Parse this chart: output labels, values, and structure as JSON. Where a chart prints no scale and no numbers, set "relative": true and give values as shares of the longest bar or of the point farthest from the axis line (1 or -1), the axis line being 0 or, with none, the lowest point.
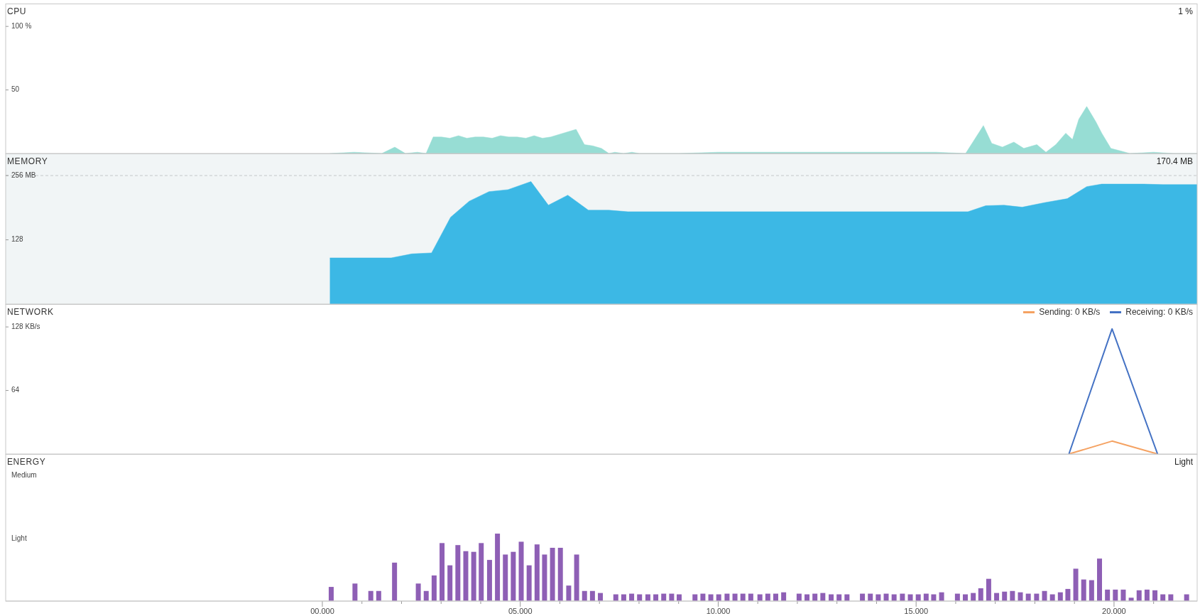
{
  "chart_data": [
    {
      "type": "area",
      "title": "CPU",
      "color": "#97ddd4",
      "xlim": [
        -8,
        22.1
      ],
      "ylim": [
        0,
        118
      ],
      "tick_labels": "y",
      "yticks": [
        {
          "value": 100,
          "label": "100 %"
        },
        50
      ],
      "annotations": [
        "1 %"
      ],
      "x": [
        0.19,
        0.8,
        1.5,
        1.83,
        2.1,
        2.4,
        2.62,
        2.8,
        3.01,
        3.22,
        3.44,
        3.65,
        3.86,
        4.07,
        4.29,
        4.5,
        4.71,
        4.92,
        5.14,
        5.35,
        5.56,
        5.77,
        5.98,
        6.41,
        6.62,
        6.83,
        7.05,
        7.24,
        7.39,
        7.61,
        7.82,
        8.01,
        9.0,
        10.0,
        11.7,
        12.9,
        14.3,
        15.5,
        16.25,
        16.7,
        16.91,
        17.18,
        17.47,
        17.72,
        18.05,
        18.28,
        18.53,
        18.78,
        18.95,
        19.11,
        19.31,
        19.54,
        19.69,
        19.92,
        20.17,
        20.4,
        21.0,
        21.5,
        22.1
      ],
      "values": [
        0,
        1,
        0,
        5,
        0,
        1,
        0,
        13,
        13,
        12,
        14,
        12,
        13,
        13,
        12,
        14,
        13,
        13,
        12,
        14,
        12,
        13,
        15,
        19,
        7,
        6,
        4,
        0,
        1,
        0,
        1,
        0,
        0,
        1,
        1,
        1,
        1,
        1,
        0,
        22,
        8,
        5,
        9,
        4,
        7,
        1,
        7,
        16,
        11,
        27,
        37,
        25,
        16,
        4,
        2,
        0,
        1,
        0,
        0
      ]
    },
    {
      "type": "area",
      "title": "MEMORY",
      "color": "#3cb8e5",
      "xlim": [
        -8,
        22.1
      ],
      "ylim": [
        0,
        300
      ],
      "tick_labels": "y",
      "yticks": [
        {
          "value": 256,
          "label": "256 MB"
        },
        128
      ],
      "annotations": [
        "170.4 MB"
      ],
      "ref_lines": [
        {
          "axis": "y",
          "value": 256,
          "color": "#c4c8ca",
          "line_style": "dashed"
        }
      ],
      "x": [
        0.19,
        1.74,
        2.26,
        2.76,
        3.24,
        3.71,
        4.21,
        4.69,
        5.27,
        5.71,
        6.2,
        6.72,
        7.24,
        7.72,
        16.31,
        16.76,
        17.22,
        17.68,
        18.24,
        18.82,
        19.31,
        19.69,
        20.75,
        21.24,
        22.1
      ],
      "values": [
        92,
        92,
        100,
        102,
        173,
        205,
        224,
        228,
        244,
        197,
        217,
        187,
        187,
        184,
        184,
        196,
        197,
        193,
        202,
        210,
        234,
        239,
        239,
        238,
        238
      ]
    },
    {
      "type": "line",
      "title": "NETWORK",
      "xlim": [
        -8,
        22.1
      ],
      "ylim": [
        0,
        151
      ],
      "tick_labels": "y",
      "legend": "top right",
      "yticks": [
        {
          "value": 128,
          "label": "128 KB/s"
        },
        64
      ],
      "series": [
        {
          "name": "Sending: 0 KB/s",
          "color": "#f5a262",
          "x": [
            18.86,
            19.95,
            21.1
          ],
          "values": [
            0,
            13,
            0
          ]
        },
        {
          "name": "Receiving: 0 KB/s",
          "color": "#4472c4",
          "x": [
            18.86,
            19.95,
            21.1
          ],
          "values": [
            0,
            126,
            0
          ]
        }
      ]
    },
    {
      "type": "bar",
      "title": "ENERGY",
      "color": "#8e5fb5",
      "xlim": [
        -8,
        22.1
      ],
      "relative": true,
      "xticks": [
        {
          "value": 0,
          "label": "00.000"
        },
        {
          "value": 1,
          "label": null
        },
        {
          "value": 2,
          "label": null
        },
        {
          "value": 3,
          "label": null
        },
        {
          "value": 4,
          "label": null
        },
        {
          "value": 5,
          "label": "05.000"
        },
        {
          "value": 6,
          "label": null
        },
        {
          "value": 7,
          "label": null
        },
        {
          "value": 8,
          "label": null
        },
        {
          "value": 9,
          "label": null
        },
        {
          "value": 10,
          "label": "10.000"
        },
        {
          "value": 11,
          "label": null
        },
        {
          "value": 12,
          "label": null
        },
        {
          "value": 13,
          "label": null
        },
        {
          "value": 14,
          "label": null
        },
        {
          "value": 15,
          "label": "15.000"
        },
        {
          "value": 16,
          "label": null
        },
        {
          "value": 17,
          "label": null
        },
        {
          "value": 18,
          "label": null
        },
        {
          "value": 19,
          "label": null
        },
        {
          "value": 20,
          "label": "20.000"
        },
        {
          "value": 21,
          "label": null
        }
      ],
      "annotations": [
        "Light",
        "Medium",
        "Light"
      ],
      "x": [
        0.22,
        0.82,
        1.22,
        1.42,
        1.82,
        2.42,
        2.62,
        2.82,
        3.02,
        3.22,
        3.42,
        3.62,
        3.82,
        4.01,
        4.22,
        4.42,
        4.62,
        4.82,
        5.02,
        5.22,
        5.42,
        5.61,
        5.81,
        6.01,
        6.22,
        6.42,
        6.62,
        6.82,
        7.02,
        7.41,
        7.61,
        7.81,
        8.01,
        8.22,
        8.42,
        8.62,
        8.82,
        9.01,
        9.41,
        9.61,
        9.81,
        10.01,
        10.22,
        10.42,
        10.62,
        10.82,
        11.05,
        11.25,
        11.45,
        11.65,
        12.04,
        12.24,
        12.44,
        12.64,
        12.85,
        13.05,
        13.25,
        13.64,
        13.84,
        14.04,
        14.24,
        14.44,
        14.65,
        14.85,
        15.05,
        15.25,
        15.44,
        15.64,
        16.04,
        16.24,
        16.44,
        16.63,
        16.83,
        17.03,
        17.23,
        17.43,
        17.63,
        17.83,
        18.04,
        18.24,
        18.44,
        18.64,
        18.83,
        19.03,
        19.23,
        19.43,
        19.63,
        19.83,
        20.03,
        20.23,
        20.43,
        20.63,
        20.83,
        21.03,
        21.23,
        21.43,
        21.83
      ],
      "values": [
        0.21,
        0.26,
        0.15,
        0.15,
        0.57,
        0.26,
        0.15,
        0.38,
        0.86,
        0.53,
        0.83,
        0.74,
        0.73,
        0.86,
        0.61,
        1,
        0.69,
        0.73,
        0.88,
        0.53,
        0.84,
        0.69,
        0.79,
        0.79,
        0.23,
        0.69,
        0.15,
        0.15,
        0.12,
        0.1,
        0.1,
        0.11,
        0.1,
        0.1,
        0.1,
        0.11,
        0.11,
        0.1,
        0.1,
        0.11,
        0.1,
        0.1,
        0.11,
        0.11,
        0.11,
        0.11,
        0.1,
        0.11,
        0.11,
        0.13,
        0.11,
        0.1,
        0.11,
        0.12,
        0.1,
        0.1,
        0.1,
        0.11,
        0.11,
        0.1,
        0.11,
        0.1,
        0.11,
        0.1,
        0.1,
        0.11,
        0.1,
        0.13,
        0.11,
        0.1,
        0.12,
        0.19,
        0.33,
        0.12,
        0.14,
        0.15,
        0.13,
        0.11,
        0.11,
        0.15,
        0.1,
        0.13,
        0.18,
        0.48,
        0.32,
        0.31,
        0.63,
        0.17,
        0.17,
        0.17,
        0.05,
        0.16,
        0.17,
        0.16,
        0.1,
        0.1,
        0.1
      ]
    }
  ]
}
